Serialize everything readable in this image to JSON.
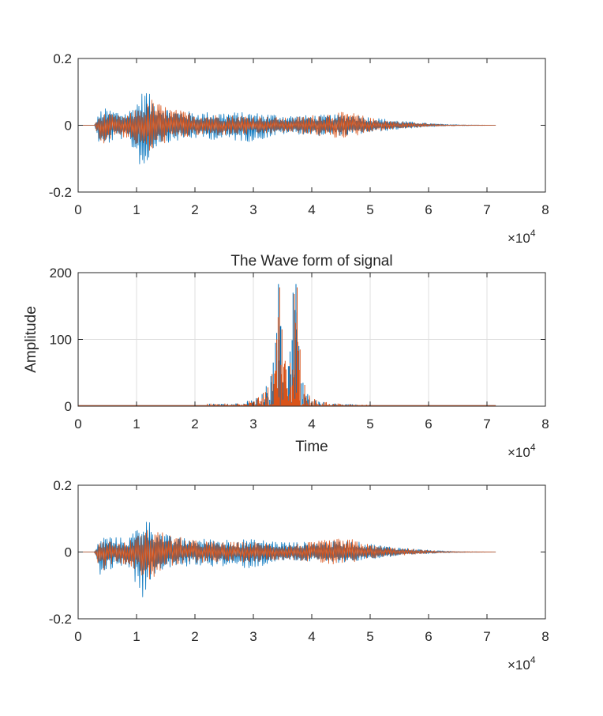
{
  "figure": {
    "background": "#ffffff",
    "axis_color": "#262626",
    "grid_color": "#dfdfdf"
  },
  "chart_data": [
    {
      "type": "line",
      "title": "",
      "xlabel": "",
      "ylabel": "",
      "xlim": [
        0,
        80000
      ],
      "ylim": [
        -0.2,
        0.2
      ],
      "x_ticks": [
        0,
        10000,
        20000,
        30000,
        40000,
        50000,
        60000,
        70000,
        80000
      ],
      "x_tick_labels": [
        "0",
        "1",
        "2",
        "3",
        "4",
        "5",
        "6",
        "7",
        "8"
      ],
      "y_ticks": [
        -0.2,
        0,
        0.2
      ],
      "y_tick_labels": [
        "-0.2",
        "0",
        "0.2"
      ],
      "x_exponent_label": "×10",
      "x_exponent_power": "4",
      "grid": false,
      "series": [
        {
          "color": "#0072BD",
          "envelope": {
            "x": [
              0,
              2800,
              3200,
              4000,
              5000,
              6500,
              8500,
              10000,
              11500,
              12500,
              14000,
              16000,
              20000,
              25000,
              30000,
              33000,
              36000,
              40000,
              44000,
              47000,
              50000,
              53000,
              56000,
              60000,
              63000,
              67000,
              71500
            ],
            "upper": [
              0,
              0,
              0.02,
              0.05,
              0.05,
              0.045,
              0.04,
              0.075,
              0.115,
              0.085,
              0.065,
              0.045,
              0.04,
              0.04,
              0.038,
              0.035,
              0.03,
              0.03,
              0.032,
              0.033,
              0.025,
              0.018,
              0.012,
              0.006,
              0.003,
              0.001,
              0
            ],
            "lower": [
              0,
              0,
              -0.035,
              -0.08,
              -0.06,
              -0.04,
              -0.045,
              -0.1,
              -0.155,
              -0.08,
              -0.055,
              -0.05,
              -0.04,
              -0.045,
              -0.05,
              -0.035,
              -0.025,
              -0.03,
              -0.032,
              -0.03,
              -0.022,
              -0.016,
              -0.01,
              -0.005,
              -0.002,
              -0.001,
              0
            ]
          }
        },
        {
          "color": "#D95319",
          "envelope": {
            "x": [
              0,
              2800,
              3200,
              4000,
              5000,
              6500,
              8500,
              10000,
              11500,
              12500,
              14000,
              16000,
              20000,
              25000,
              30000,
              33000,
              36000,
              40000,
              44000,
              47000,
              50000,
              53000,
              56000,
              60000,
              63000,
              67000,
              71500
            ],
            "upper": [
              0,
              0,
              0.015,
              0.035,
              0.035,
              0.03,
              0.03,
              0.05,
              0.06,
              0.08,
              0.065,
              0.05,
              0.035,
              0.03,
              0.03,
              0.025,
              0.022,
              0.03,
              0.04,
              0.038,
              0.022,
              0.015,
              0.01,
              0.005,
              0.002,
              0.001,
              0
            ],
            "lower": [
              0,
              0,
              -0.025,
              -0.06,
              -0.045,
              -0.03,
              -0.04,
              -0.06,
              -0.08,
              -0.085,
              -0.06,
              -0.045,
              -0.032,
              -0.03,
              -0.03,
              -0.025,
              -0.022,
              -0.03,
              -0.04,
              -0.035,
              -0.02,
              -0.014,
              -0.009,
              -0.004,
              -0.002,
              -0.001,
              0
            ]
          }
        }
      ]
    },
    {
      "type": "line",
      "title": "The Wave form of signal",
      "xlabel": "Time",
      "ylabel": "Amplitude",
      "xlim": [
        0,
        80000
      ],
      "ylim": [
        0,
        200
      ],
      "x_ticks": [
        0,
        10000,
        20000,
        30000,
        40000,
        50000,
        60000,
        70000,
        80000
      ],
      "x_tick_labels": [
        "0",
        "1",
        "2",
        "3",
        "4",
        "5",
        "6",
        "7",
        "8"
      ],
      "y_ticks": [
        0,
        100,
        200
      ],
      "y_tick_labels": [
        "0",
        "100",
        "200"
      ],
      "x_exponent_label": "×10",
      "x_exponent_power": "4",
      "grid": true,
      "series": [
        {
          "color": "#0072BD",
          "peaks": [
            [
              27000,
              4
            ],
            [
              29000,
              8
            ],
            [
              30500,
              12
            ],
            [
              31500,
              18
            ],
            [
              32200,
              30
            ],
            [
              33000,
              45
            ],
            [
              33800,
              95
            ],
            [
              34300,
              183
            ],
            [
              34700,
              120
            ],
            [
              35300,
              50
            ],
            [
              36000,
              60
            ],
            [
              36800,
              170
            ],
            [
              37300,
              183
            ],
            [
              37800,
              90
            ],
            [
              38500,
              35
            ],
            [
              39300,
              18
            ],
            [
              40500,
              10
            ],
            [
              42000,
              6
            ],
            [
              44000,
              4
            ],
            [
              46000,
              3
            ]
          ]
        },
        {
          "color": "#D95319",
          "peaks": [
            [
              27300,
              4
            ],
            [
              29300,
              8
            ],
            [
              30700,
              12
            ],
            [
              31700,
              20
            ],
            [
              32500,
              28
            ],
            [
              33200,
              48
            ],
            [
              34000,
              100
            ],
            [
              34500,
              178
            ],
            [
              34900,
              115
            ],
            [
              35600,
              55
            ],
            [
              36300,
              65
            ],
            [
              37000,
              168
            ],
            [
              37500,
              178
            ],
            [
              38000,
              85
            ],
            [
              38800,
              32
            ],
            [
              39600,
              16
            ],
            [
              40800,
              9
            ],
            [
              42500,
              6
            ],
            [
              44500,
              4
            ],
            [
              46500,
              3
            ]
          ]
        }
      ]
    },
    {
      "type": "line",
      "title": "",
      "xlabel": "",
      "ylabel": "",
      "xlim": [
        0,
        80000
      ],
      "ylim": [
        -0.2,
        0.2
      ],
      "x_ticks": [
        0,
        10000,
        20000,
        30000,
        40000,
        50000,
        60000,
        70000,
        80000
      ],
      "x_tick_labels": [
        "0",
        "1",
        "2",
        "3",
        "4",
        "5",
        "6",
        "7",
        "8"
      ],
      "y_ticks": [
        -0.2,
        0,
        0.2
      ],
      "y_tick_labels": [
        "-0.2",
        "0",
        "0.2"
      ],
      "x_exponent_label": "×10",
      "x_exponent_power": "4",
      "grid": false,
      "series": [
        {
          "color": "#0072BD",
          "envelope": {
            "x": [
              0,
              2800,
              3200,
              4000,
              5000,
              6500,
              8500,
              10000,
              11500,
              12500,
              14000,
              16000,
              20000,
              25000,
              30000,
              33000,
              36000,
              40000,
              44000,
              47000,
              50000,
              53000,
              56000,
              60000,
              63000,
              67000,
              71500
            ],
            "upper": [
              0,
              0,
              0.02,
              0.045,
              0.05,
              0.045,
              0.04,
              0.075,
              0.115,
              0.085,
              0.065,
              0.045,
              0.04,
              0.04,
              0.038,
              0.035,
              0.03,
              0.03,
              0.032,
              0.033,
              0.025,
              0.018,
              0.012,
              0.006,
              0.003,
              0.001,
              0
            ],
            "lower": [
              0,
              0,
              -0.035,
              -0.08,
              -0.06,
              -0.04,
              -0.045,
              -0.1,
              -0.155,
              -0.08,
              -0.055,
              -0.05,
              -0.04,
              -0.045,
              -0.05,
              -0.035,
              -0.025,
              -0.03,
              -0.032,
              -0.03,
              -0.022,
              -0.016,
              -0.01,
              -0.005,
              -0.002,
              -0.001,
              0
            ]
          }
        },
        {
          "color": "#D95319",
          "envelope": {
            "x": [
              0,
              2800,
              3200,
              4000,
              5000,
              6500,
              8500,
              10000,
              11500,
              12500,
              14000,
              16000,
              20000,
              25000,
              30000,
              33000,
              36000,
              40000,
              44000,
              47000,
              50000,
              53000,
              56000,
              60000,
              63000,
              67000,
              71500
            ],
            "upper": [
              0,
              0,
              0.015,
              0.035,
              0.035,
              0.03,
              0.03,
              0.05,
              0.06,
              0.08,
              0.065,
              0.05,
              0.035,
              0.03,
              0.03,
              0.025,
              0.022,
              0.03,
              0.04,
              0.038,
              0.022,
              0.015,
              0.01,
              0.005,
              0.002,
              0.001,
              0
            ],
            "lower": [
              0,
              0,
              -0.025,
              -0.06,
              -0.045,
              -0.03,
              -0.04,
              -0.06,
              -0.08,
              -0.085,
              -0.06,
              -0.045,
              -0.032,
              -0.03,
              -0.03,
              -0.025,
              -0.022,
              -0.03,
              -0.04,
              -0.035,
              -0.02,
              -0.014,
              -0.009,
              -0.004,
              -0.002,
              -0.001,
              0
            ]
          }
        }
      ]
    }
  ]
}
